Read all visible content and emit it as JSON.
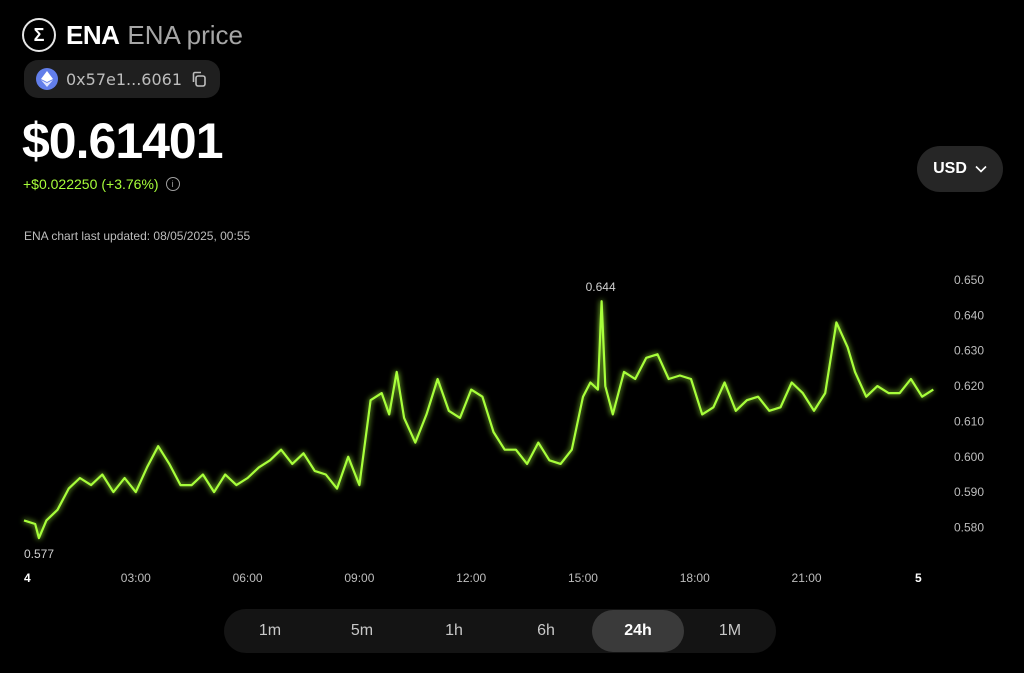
{
  "token": {
    "symbol": "ENA",
    "name": "ENA price",
    "logo_glyph": "Σ"
  },
  "contract": {
    "address": "0x57e1...6061",
    "chain_icon": "ethereum-icon"
  },
  "price": {
    "value": "$0.61401",
    "change": "+$0.022250",
    "change_pct": "(+3.76%)",
    "change_color": "#a8ff3a"
  },
  "currency": {
    "selected": "USD"
  },
  "updated": "ENA chart last updated: 08/05/2025, 00:55",
  "timeframes": [
    "1m",
    "5m",
    "1h",
    "6h",
    "24h",
    "1M"
  ],
  "active_timeframe": "24h",
  "chart_data": {
    "type": "line",
    "title": "",
    "xlabel": "",
    "ylabel": "",
    "color": "#a8ff3a",
    "ylim": [
      0.57,
      0.65
    ],
    "yticks": [
      0.65,
      0.64,
      0.63,
      0.62,
      0.61,
      0.6,
      0.59,
      0.58
    ],
    "ytick_labels": [
      "0.650",
      "0.640",
      "0.630",
      "0.620",
      "0.610",
      "0.600",
      "0.590",
      "0.580"
    ],
    "xlim": [
      0,
      24.5
    ],
    "xticks": [
      0,
      3,
      6,
      9,
      12,
      15,
      18,
      21,
      24
    ],
    "xtick_labels": [
      "4",
      "03:00",
      "06:00",
      "09:00",
      "12:00",
      "15:00",
      "18:00",
      "21:00",
      "5"
    ],
    "annotations": [
      {
        "x": 0.4,
        "y": 0.577,
        "label": "0.577",
        "position": "below"
      },
      {
        "x": 15.5,
        "y": 0.644,
        "label": "0.644",
        "position": "above"
      }
    ],
    "series": [
      {
        "x": [
          0,
          0.3,
          0.4,
          0.6,
          0.9,
          1.2,
          1.5,
          1.8,
          2.1,
          2.4,
          2.7,
          3.0,
          3.3,
          3.6,
          3.9,
          4.2,
          4.5,
          4.8,
          5.1,
          5.4,
          5.7,
          6.0,
          6.3,
          6.6,
          6.9,
          7.2,
          7.5,
          7.8,
          8.1,
          8.4,
          8.7,
          9.0,
          9.3,
          9.6,
          9.8,
          10.0,
          10.2,
          10.5,
          10.8,
          11.1,
          11.4,
          11.7,
          12.0,
          12.3,
          12.6,
          12.9,
          13.2,
          13.5,
          13.8,
          14.1,
          14.4,
          14.7,
          15.0,
          15.2,
          15.4,
          15.5,
          15.6,
          15.8,
          16.1,
          16.4,
          16.7,
          17.0,
          17.3,
          17.6,
          17.9,
          18.2,
          18.5,
          18.8,
          19.1,
          19.4,
          19.7,
          20.0,
          20.3,
          20.6,
          20.9,
          21.2,
          21.5,
          21.8,
          22.1,
          22.3,
          22.6,
          22.9,
          23.2,
          23.5,
          23.8,
          24.1,
          24.4
        ],
        "y": [
          0.582,
          0.581,
          0.577,
          0.582,
          0.585,
          0.591,
          0.594,
          0.592,
          0.595,
          0.59,
          0.594,
          0.59,
          0.597,
          0.603,
          0.598,
          0.592,
          0.592,
          0.595,
          0.59,
          0.595,
          0.592,
          0.594,
          0.597,
          0.599,
          0.602,
          0.598,
          0.601,
          0.596,
          0.595,
          0.591,
          0.6,
          0.592,
          0.616,
          0.618,
          0.612,
          0.624,
          0.611,
          0.604,
          0.612,
          0.622,
          0.613,
          0.611,
          0.619,
          0.617,
          0.607,
          0.602,
          0.602,
          0.598,
          0.604,
          0.599,
          0.598,
          0.602,
          0.617,
          0.621,
          0.619,
          0.644,
          0.62,
          0.612,
          0.624,
          0.622,
          0.628,
          0.629,
          0.622,
          0.623,
          0.622,
          0.612,
          0.614,
          0.621,
          0.613,
          0.616,
          0.617,
          0.613,
          0.614,
          0.621,
          0.618,
          0.613,
          0.618,
          0.638,
          0.631,
          0.624,
          0.617,
          0.62,
          0.618,
          0.618,
          0.622,
          0.617,
          0.619
        ]
      }
    ]
  }
}
